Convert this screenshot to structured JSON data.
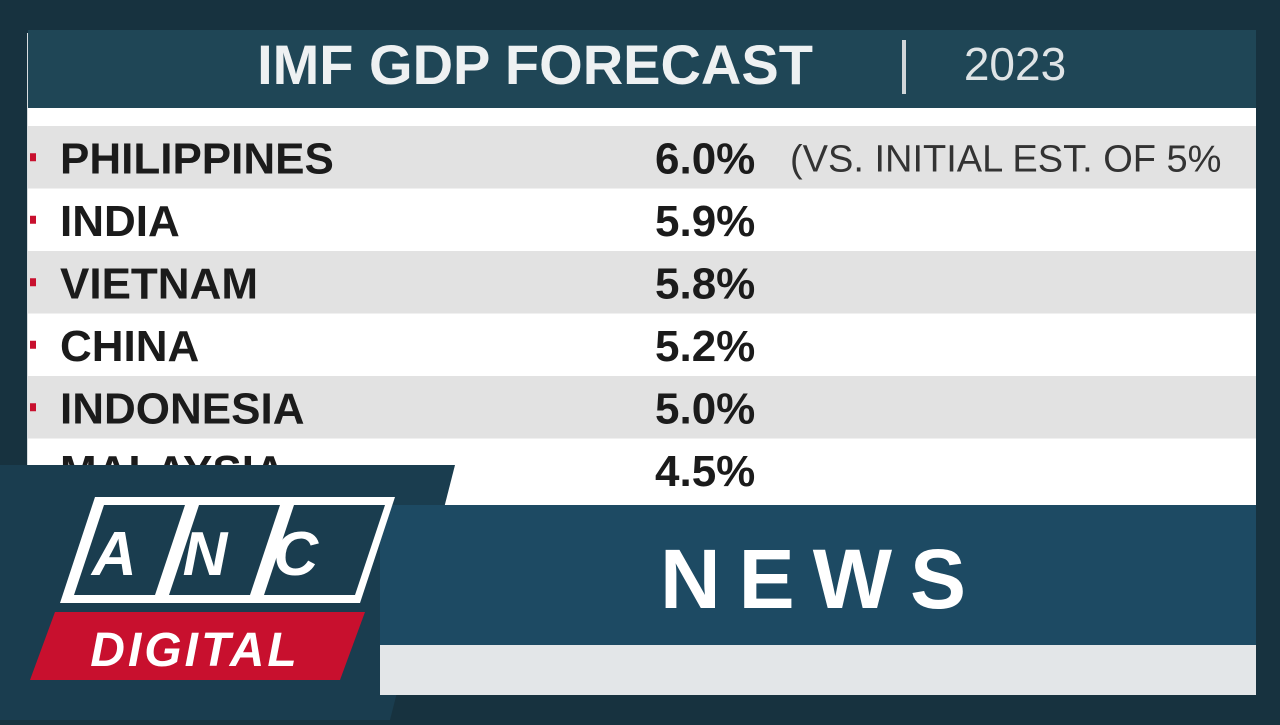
{
  "header": {
    "title": "IMF GDP FORECAST",
    "year": "2023"
  },
  "table": {
    "rows": [
      {
        "country": "PHILIPPINES",
        "value": "6.0%",
        "note": "(VS. INITIAL EST. OF 5%"
      },
      {
        "country": "INDIA",
        "value": "5.9%"
      },
      {
        "country": "VIETNAM",
        "value": "5.8%"
      },
      {
        "country": "CHINA",
        "value": "5.2%"
      },
      {
        "country": "INDONESIA",
        "value": "5.0%"
      },
      {
        "country": "MALAYSIA",
        "value": "4.5%"
      }
    ]
  },
  "branding": {
    "logo": "ANC",
    "sublogo": "DIGITAL",
    "section": "NEWS"
  }
}
